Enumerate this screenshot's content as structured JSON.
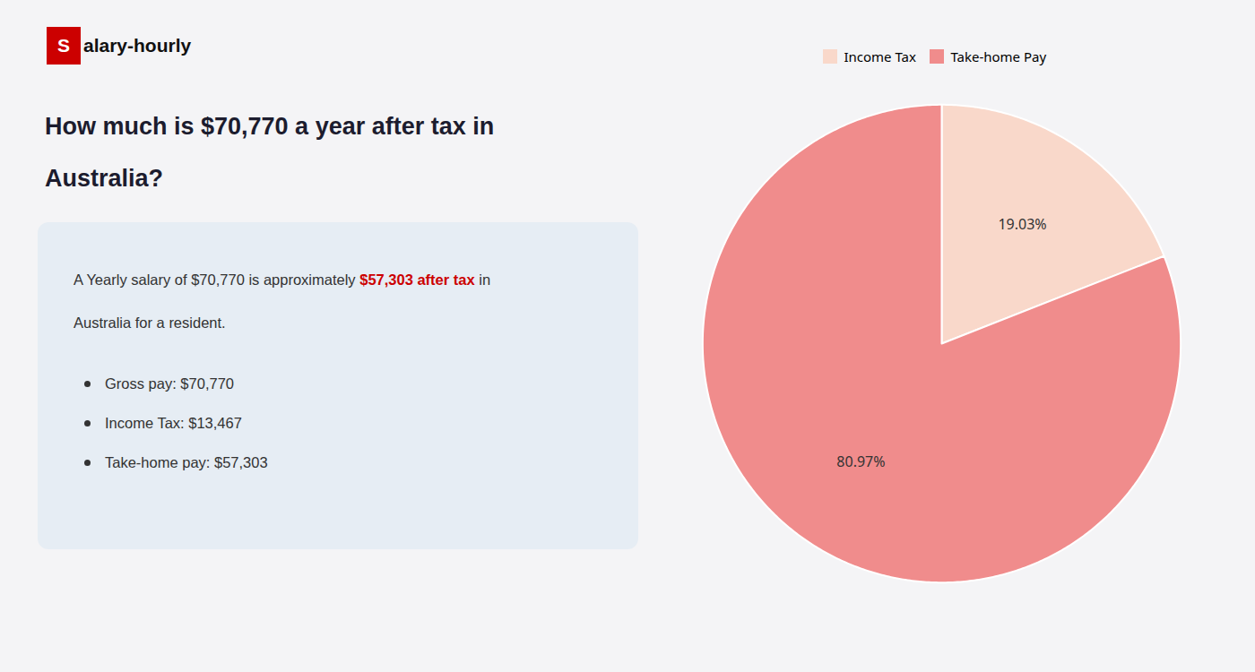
{
  "chart_data": {
    "type": "pie",
    "title": "How much is $70,770 a year after tax in\nAustralia?",
    "categories": [
      "Income Tax",
      "Take-home Pay"
    ],
    "values": [
      19.03,
      80.97
    ],
    "value_labels": [
      "19.03%",
      "80.97%"
    ],
    "colors": [
      "#f9d8ca",
      "#f08c8c"
    ],
    "data_labels": true,
    "legend": "top",
    "annotations": [
      [
        {
          "text": "S",
          "color": "#cc0000"
        },
        {
          "text": "alary-hourly"
        }
      ],
      [
        {
          "text": "A Yearly salary of $70,770 is approximately "
        },
        {
          "text": "$57,303 after tax",
          "color": "#cc0000"
        },
        {
          "text": " in"
        }
      ],
      [
        {
          "text": "Australia for a resident."
        }
      ],
      [
        {
          "text": "Gross pay: $70,770"
        }
      ],
      [
        {
          "text": "Income Tax: $13,467"
        }
      ],
      [
        {
          "text": "Take-home pay: $57,303"
        }
      ]
    ]
  }
}
